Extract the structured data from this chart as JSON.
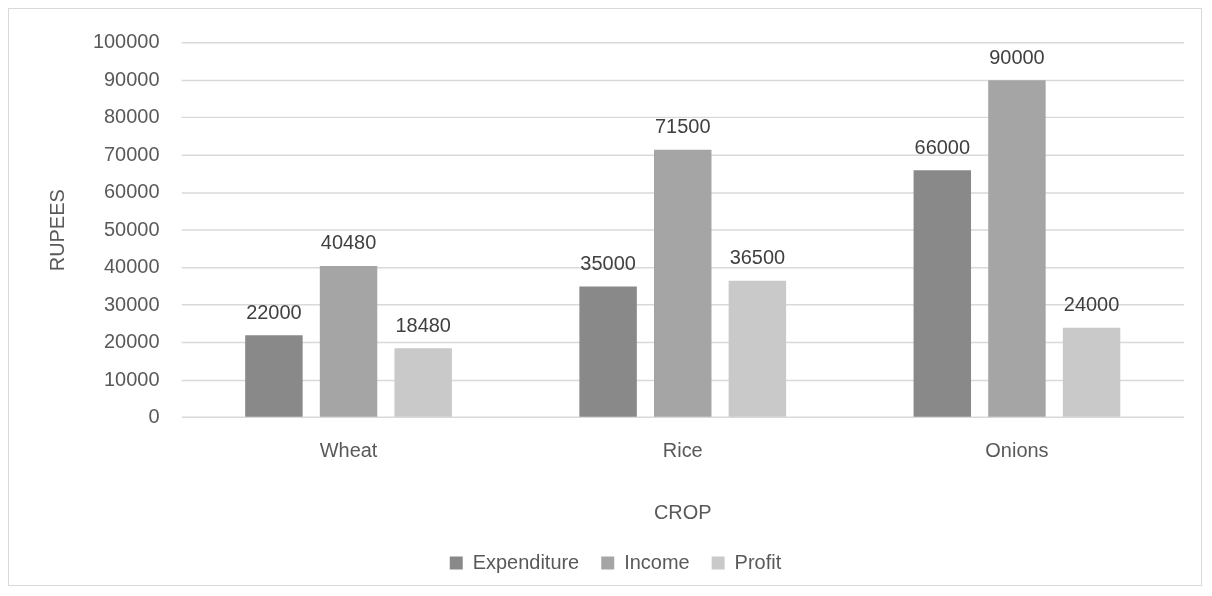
{
  "chart_data": {
    "type": "bar",
    "xlabel": "CROP",
    "ylabel": "RUPEES",
    "categories": [
      "Wheat",
      "Rice",
      "Onions"
    ],
    "series": [
      {
        "name": "Expenditure",
        "color": "#898989",
        "values": [
          22000,
          35000,
          66000
        ]
      },
      {
        "name": "Income",
        "color": "#a5a5a5",
        "values": [
          40480,
          71500,
          90000
        ]
      },
      {
        "name": "Profit",
        "color": "#c9c9c9",
        "values": [
          18480,
          36500,
          24000
        ]
      }
    ],
    "ylim": [
      0,
      100000
    ],
    "yticks": [
      0,
      10000,
      20000,
      30000,
      40000,
      50000,
      60000,
      70000,
      80000,
      90000,
      100000
    ],
    "grid": "y",
    "legend": "bottom",
    "data_labels": true
  }
}
